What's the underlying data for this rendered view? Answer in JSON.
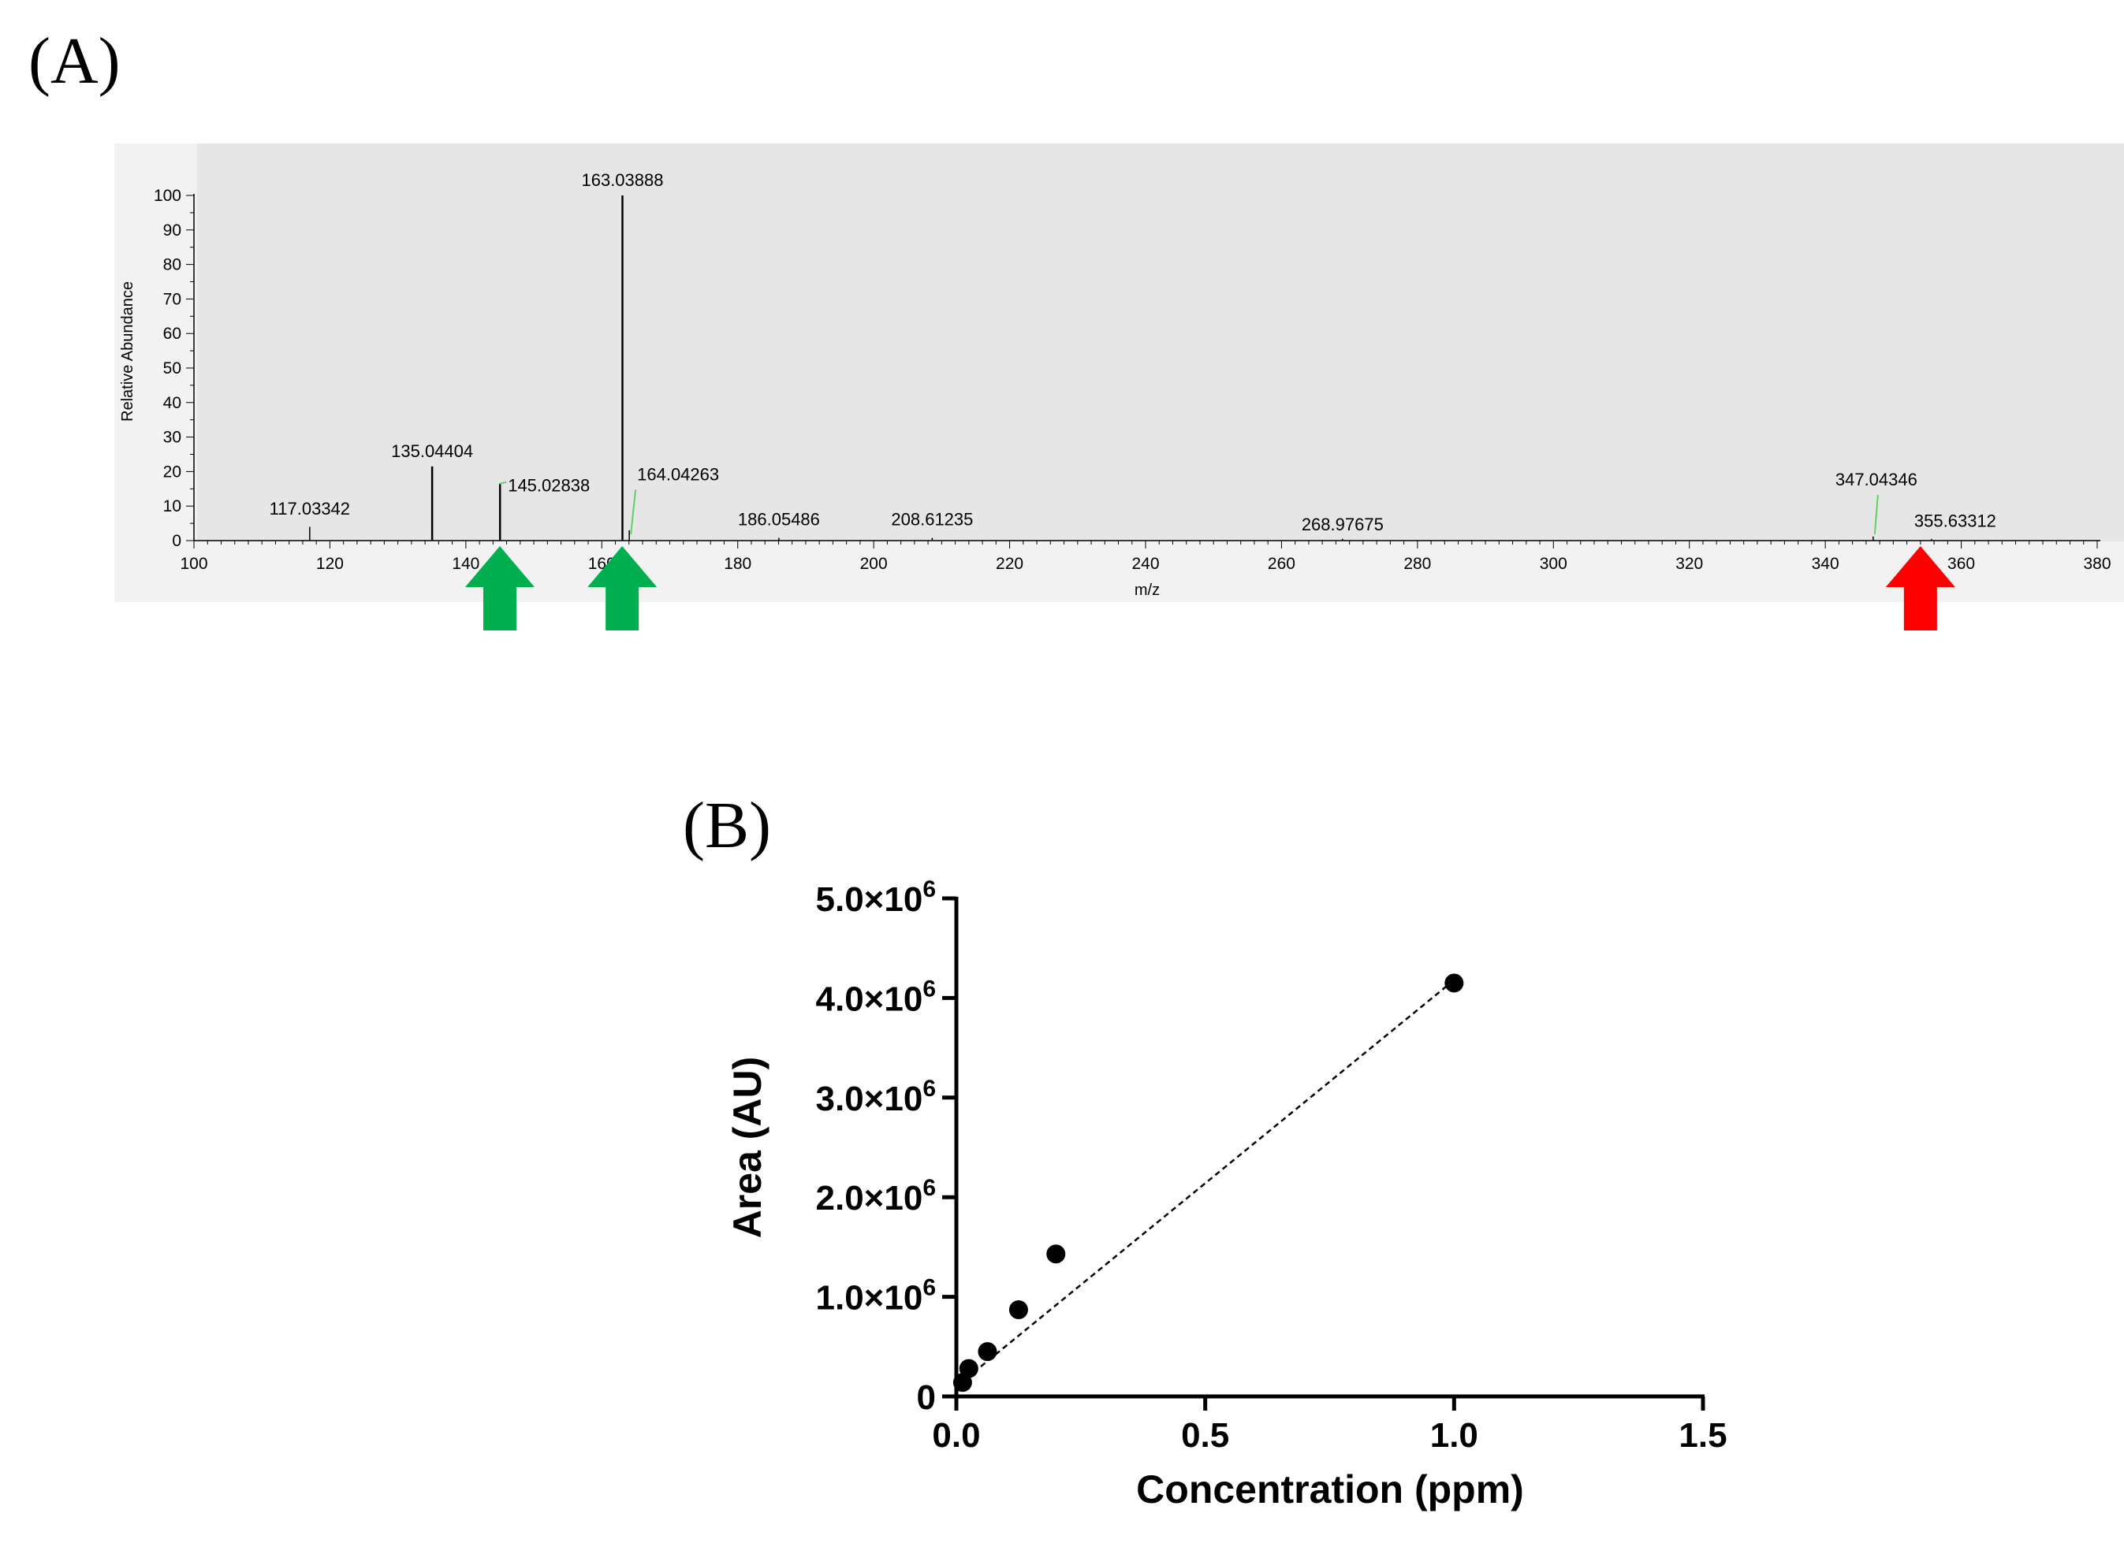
{
  "panels": {
    "a": {
      "label": "(A)"
    },
    "b": {
      "label": "(B)"
    }
  },
  "colors": {
    "plot_bg": "#e6e6e6",
    "frame_bg": "#f2f2f2",
    "peak": "#000000",
    "green_marker": "#00b050",
    "red_marker": "#ff0000",
    "green_label_line": "#5fd35f"
  },
  "chart_data": [
    {
      "type": "bar",
      "subtype": "mass-spectrum",
      "xlabel": "m/z",
      "ylabel": "Relative Abundance",
      "xlim": [
        100,
        380
      ],
      "ylim": [
        0,
        100
      ],
      "x_ticks": [
        "100",
        "120",
        "140",
        "160",
        "180",
        "200",
        "220",
        "240",
        "260",
        "280",
        "300",
        "320",
        "340",
        "360",
        "380"
      ],
      "y_ticks": [
        "0",
        "10",
        "20",
        "30",
        "40",
        "50",
        "60",
        "70",
        "80",
        "90",
        "100"
      ],
      "grid": false,
      "peaks": [
        {
          "mz": 117.03342,
          "abundance": 4,
          "label": "117.03342"
        },
        {
          "mz": 135.04404,
          "abundance": 21.5,
          "label": "135.04404"
        },
        {
          "mz": 145.02838,
          "abundance": 16.5,
          "label": "145.02838"
        },
        {
          "mz": 163.03888,
          "abundance": 100,
          "label": "163.03888"
        },
        {
          "mz": 164.04263,
          "abundance": 3,
          "label": "164.04263"
        },
        {
          "mz": 186.05486,
          "abundance": 0.8,
          "label": "186.05486"
        },
        {
          "mz": 208.61235,
          "abundance": 0.8,
          "label": "208.61235"
        },
        {
          "mz": 268.97675,
          "abundance": 0.5,
          "label": "268.97675"
        },
        {
          "mz": 347.04346,
          "abundance": 1.2,
          "label": "347.04346"
        },
        {
          "mz": 355.63312,
          "abundance": 0.5,
          "label": "355.63312"
        }
      ],
      "markers": [
        {
          "mz": 145,
          "color": "green"
        },
        {
          "mz": 163,
          "color": "green"
        },
        {
          "mz": 354,
          "color": "red"
        }
      ]
    },
    {
      "type": "scatter",
      "xlabel": "Concentration (ppm)",
      "ylabel": "Area (AU)",
      "xlim": [
        0,
        1.5
      ],
      "ylim": [
        0,
        5000000
      ],
      "x_ticks": [
        "0.0",
        "0.5",
        "1.0",
        "1.5"
      ],
      "y_ticks": [
        {
          "base": "0",
          "exp": ""
        },
        {
          "base": "1.0×10",
          "exp": "6"
        },
        {
          "base": "2.0×10",
          "exp": "6"
        },
        {
          "base": "3.0×10",
          "exp": "6"
        },
        {
          "base": "4.0×10",
          "exp": "6"
        },
        {
          "base": "5.0×10",
          "exp": "6"
        }
      ],
      "grid": false,
      "points": [
        {
          "x": 0.0125,
          "y": 140000
        },
        {
          "x": 0.025,
          "y": 280000
        },
        {
          "x": 0.0625,
          "y": 450000
        },
        {
          "x": 0.125,
          "y": 870000
        },
        {
          "x": 0.2,
          "y": 1430000
        },
        {
          "x": 1.0,
          "y": 4150000
        }
      ],
      "fit": {
        "style": "dashed",
        "x": [
          0.005,
          1.0
        ],
        "y": [
          120000,
          4180000
        ]
      }
    }
  ]
}
